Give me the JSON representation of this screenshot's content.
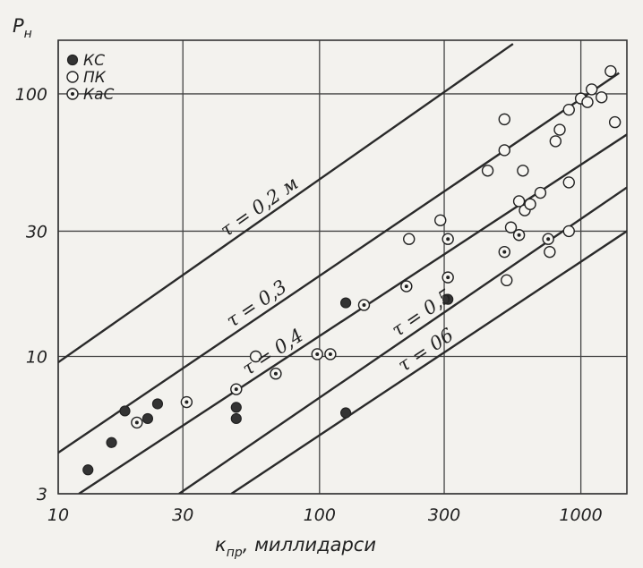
{
  "chart_data": {
    "type": "scatter",
    "xscale": "log",
    "yscale": "log",
    "xlim": [
      10,
      1500
    ],
    "ylim": [
      3,
      160
    ],
    "grid": true,
    "legend_position": "top-left",
    "y_axis_title": {
      "main": "P",
      "sub": "н"
    },
    "x_axis_title": {
      "main": "к",
      "sub": "пр",
      "rest": ", миллидарси"
    },
    "x_ticks": [
      {
        "value": 10,
        "label": "10"
      },
      {
        "value": 30,
        "label": "30"
      },
      {
        "value": 100,
        "label": "100"
      },
      {
        "value": 300,
        "label": "300"
      },
      {
        "value": 1000,
        "label": "1000"
      }
    ],
    "y_ticks": [
      {
        "value": 3,
        "label": "3"
      },
      {
        "value": 10,
        "label": "10"
      },
      {
        "value": 30,
        "label": "30"
      },
      {
        "value": 100,
        "label": "100"
      }
    ],
    "legend": [
      {
        "label": "КС",
        "marker": "filled"
      },
      {
        "label": "ПК",
        "marker": "open"
      },
      {
        "label": "КаС",
        "marker": "dotted"
      }
    ],
    "lines": [
      {
        "label": "τ = 0,2 м",
        "points": [
          [
            10,
            9.5
          ],
          [
            550,
            155
          ]
        ]
      },
      {
        "label": "τ = 0,3",
        "points": [
          [
            10,
            4.3
          ],
          [
            1400,
            120
          ]
        ]
      },
      {
        "label": "τ = 0,4",
        "points": [
          [
            12,
            3
          ],
          [
            1500,
            70
          ]
        ]
      },
      {
        "label": "τ = 0,5",
        "points": [
          [
            29,
            3
          ],
          [
            1500,
            44
          ]
        ]
      },
      {
        "label": "τ = 06",
        "points": [
          [
            46,
            3
          ],
          [
            1500,
            30
          ]
        ]
      }
    ],
    "series": [
      {
        "name": "КС",
        "marker": "filled",
        "points": [
          [
            13,
            3.7
          ],
          [
            16,
            4.7
          ],
          [
            18,
            6.2
          ],
          [
            22,
            5.8
          ],
          [
            24,
            6.6
          ],
          [
            48,
            6.4
          ],
          [
            48,
            5.8
          ],
          [
            126,
            16
          ],
          [
            310,
            16.5
          ],
          [
            126,
            6.1
          ]
        ]
      },
      {
        "name": "ПК",
        "marker": "open",
        "points": [
          [
            57,
            10
          ],
          [
            220,
            28
          ],
          [
            290,
            33
          ],
          [
            440,
            51
          ],
          [
            510,
            80
          ],
          [
            510,
            61
          ],
          [
            520,
            19.5
          ],
          [
            540,
            31
          ],
          [
            580,
            39
          ],
          [
            600,
            51
          ],
          [
            610,
            36
          ],
          [
            640,
            38
          ],
          [
            700,
            42
          ],
          [
            760,
            25
          ],
          [
            800,
            66
          ],
          [
            830,
            73
          ],
          [
            900,
            87
          ],
          [
            900,
            30
          ],
          [
            900,
            46
          ],
          [
            1000,
            96
          ],
          [
            1060,
            93
          ],
          [
            1100,
            104
          ],
          [
            1200,
            97
          ],
          [
            1300,
            122
          ],
          [
            1350,
            78
          ]
        ]
      },
      {
        "name": "КаС",
        "marker": "dotted",
        "points": [
          [
            20,
            5.6
          ],
          [
            31,
            6.7
          ],
          [
            48,
            7.5
          ],
          [
            68,
            8.6
          ],
          [
            98,
            10.2
          ],
          [
            110,
            10.2
          ],
          [
            148,
            15.7
          ],
          [
            215,
            18.5
          ],
          [
            310,
            20
          ],
          [
            310,
            28
          ],
          [
            510,
            25
          ],
          [
            580,
            29
          ],
          [
            750,
            28
          ]
        ]
      }
    ]
  }
}
